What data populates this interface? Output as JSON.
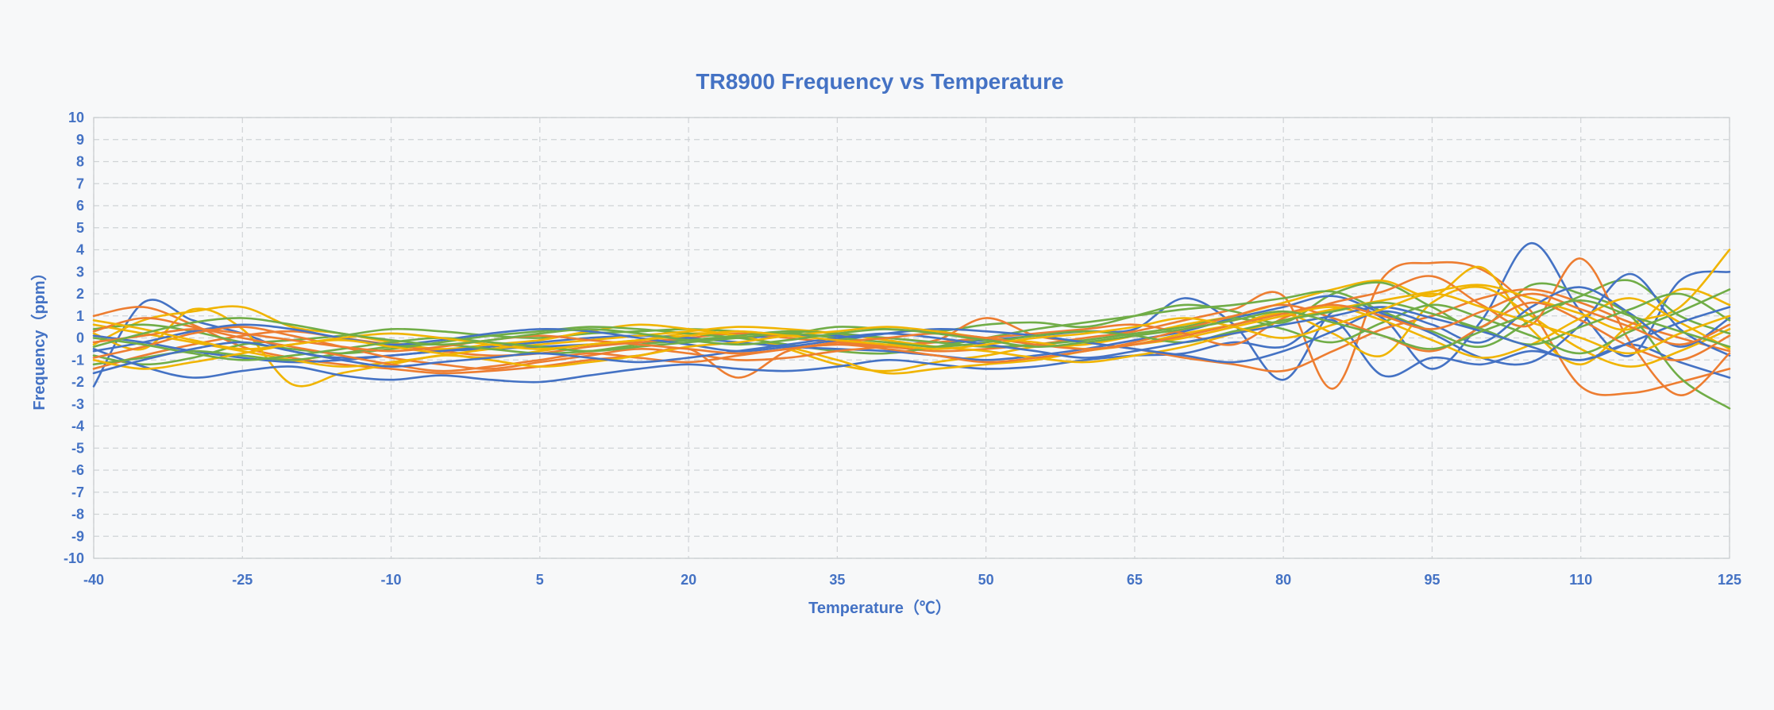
{
  "chart_data": {
    "type": "line",
    "title": "TR8900 Frequency vs Temperature",
    "xlabel": "Temperature（℃）",
    "ylabel": "Frequency（ppm）",
    "xlim": [
      -40,
      125
    ],
    "ylim": [
      -10,
      10
    ],
    "x_ticks": [
      -40,
      -25,
      -10,
      5,
      20,
      35,
      50,
      65,
      80,
      95,
      110,
      125
    ],
    "y_ticks": [
      10,
      9,
      8,
      7,
      6,
      5,
      4,
      3,
      2,
      1,
      0,
      -1,
      -2,
      -3,
      -4,
      -5,
      -6,
      -7,
      -8,
      -9,
      -10
    ],
    "grid": true,
    "legend": "none",
    "x": [
      -40,
      -35,
      -30,
      -25,
      -20,
      -15,
      -10,
      -5,
      0,
      5,
      10,
      15,
      20,
      25,
      30,
      35,
      40,
      45,
      50,
      55,
      60,
      65,
      70,
      75,
      80,
      85,
      90,
      95,
      100,
      105,
      110,
      115,
      120,
      125
    ],
    "series": [
      {
        "color": "#4472c4",
        "values": [
          -2.2,
          1.6,
          0.8,
          0.2,
          -0.6,
          -0.9,
          -0.8,
          -0.6,
          -0.5,
          -0.4,
          -0.3,
          -0.2,
          -0.1,
          0.0,
          0.1,
          0.1,
          0.0,
          -0.2,
          -0.1,
          0.1,
          0.3,
          0.4,
          1.8,
          0.6,
          -1.9,
          1.2,
          0.9,
          -1.4,
          0.8,
          4.3,
          1.2,
          -0.8,
          2.6,
          3.0
        ]
      },
      {
        "color": "#ed7d31",
        "values": [
          1.0,
          1.4,
          0.6,
          -0.4,
          -0.9,
          -1.2,
          -1.4,
          -1.6,
          -1.5,
          -1.3,
          -1.0,
          -0.8,
          -0.5,
          -1.8,
          -0.6,
          -0.3,
          -0.4,
          -0.6,
          -0.5,
          -0.3,
          0.0,
          0.3,
          0.8,
          1.3,
          1.9,
          -2.3,
          2.7,
          3.4,
          3.1,
          1.2,
          -2.2,
          -2.5,
          -2.0,
          -1.4
        ]
      },
      {
        "color": "#f0b400",
        "values": [
          0.2,
          -0.5,
          1.3,
          0.4,
          -2.1,
          -1.6,
          -1.2,
          -0.8,
          -0.9,
          -0.6,
          -0.3,
          -0.1,
          0.2,
          0.1,
          -0.5,
          -1.2,
          -1.5,
          -1.1,
          -0.8,
          -0.4,
          -0.3,
          0.1,
          0.6,
          1.0,
          1.6,
          2.2,
          2.6,
          1.9,
          3.2,
          0.4,
          -1.2,
          0.6,
          1.4,
          4.0
        ]
      },
      {
        "color": "#70ad47",
        "values": [
          -0.8,
          -1.2,
          -0.9,
          -0.3,
          -0.1,
          0.1,
          0.4,
          0.3,
          0.1,
          0.0,
          0.2,
          0.3,
          0.4,
          0.3,
          0.2,
          0.5,
          0.4,
          0.3,
          0.6,
          0.7,
          0.5,
          1.0,
          1.5,
          1.2,
          0.7,
          2.0,
          2.5,
          1.4,
          0.5,
          2.4,
          2.0,
          1.0,
          -1.8,
          -3.2
        ]
      },
      {
        "color": "#4472c4",
        "values": [
          -0.5,
          -1.3,
          -1.8,
          -1.5,
          -1.3,
          -1.7,
          -1.9,
          -1.7,
          -1.9,
          -2.0,
          -1.7,
          -1.4,
          -1.2,
          -1.4,
          -1.5,
          -1.3,
          -1.0,
          -1.2,
          -1.4,
          -1.3,
          -1.0,
          -0.8,
          -0.7,
          -0.2,
          -0.4,
          0.8,
          -1.7,
          -0.9,
          -1.2,
          -0.6,
          -1.0,
          -0.3,
          -1.1,
          -1.8
        ]
      },
      {
        "color": "#ed7d31",
        "values": [
          -1.4,
          -0.8,
          -0.3,
          0.1,
          0.3,
          0.0,
          -0.3,
          -0.6,
          -0.8,
          -0.7,
          -0.4,
          -0.2,
          0.0,
          0.2,
          0.0,
          -0.2,
          -0.3,
          -0.1,
          0.9,
          0.1,
          -0.2,
          -0.5,
          -0.9,
          -1.2,
          -1.5,
          -0.6,
          0.4,
          1.0,
          1.8,
          2.2,
          1.6,
          0.7,
          0.0,
          -0.6
        ]
      },
      {
        "color": "#f0b400",
        "values": [
          -0.3,
          0.8,
          1.2,
          1.4,
          0.5,
          0.2,
          -0.2,
          -0.5,
          -0.3,
          -0.1,
          0.3,
          0.6,
          0.4,
          0.1,
          -0.4,
          -1.0,
          -1.6,
          -1.4,
          -1.2,
          -1.0,
          -0.6,
          -0.3,
          0.2,
          0.6,
          1.1,
          0.2,
          -0.8,
          1.6,
          2.3,
          1.0,
          -0.5,
          -1.3,
          -0.6,
          0.4
        ]
      },
      {
        "color": "#70ad47",
        "values": [
          0.4,
          0.6,
          0.3,
          -0.2,
          -0.5,
          -0.7,
          -0.5,
          -0.2,
          0.1,
          0.3,
          0.5,
          0.4,
          0.2,
          0.0,
          -0.3,
          -0.6,
          -0.7,
          -0.4,
          0.0,
          0.4,
          0.7,
          1.0,
          1.3,
          1.5,
          1.8,
          2.1,
          1.2,
          0.3,
          -0.4,
          0.8,
          1.9,
          2.6,
          1.0,
          0.2
        ]
      },
      {
        "color": "#4472c4",
        "values": [
          0.1,
          -0.2,
          -0.6,
          -0.9,
          -1.1,
          -1.0,
          -0.8,
          -0.6,
          -0.4,
          -0.2,
          0.0,
          0.1,
          0.0,
          -0.2,
          -0.4,
          -0.5,
          -0.6,
          -0.8,
          -1.0,
          -0.8,
          -0.5,
          -0.1,
          0.3,
          0.9,
          1.4,
          1.9,
          1.1,
          0.2,
          -0.9,
          -1.1,
          0.6,
          2.9,
          0.4,
          -0.8
        ]
      },
      {
        "color": "#ed7d31",
        "values": [
          -0.9,
          -0.4,
          0.2,
          0.5,
          0.1,
          -0.4,
          -0.9,
          -1.2,
          -1.4,
          -1.1,
          -0.8,
          -0.5,
          -0.7,
          -1.0,
          -0.9,
          -0.6,
          -0.4,
          -0.2,
          0.0,
          0.2,
          0.4,
          0.6,
          0.2,
          -0.3,
          0.9,
          1.6,
          2.1,
          2.8,
          1.5,
          0.6,
          3.6,
          -0.2,
          -2.6,
          -0.7
        ]
      },
      {
        "color": "#f0b400",
        "values": [
          0.6,
          0.2,
          -0.2,
          -0.6,
          -1.0,
          -1.3,
          -1.1,
          -0.8,
          -0.5,
          -0.3,
          -0.1,
          0.1,
          0.3,
          0.5,
          0.4,
          0.2,
          -0.1,
          -0.4,
          -0.6,
          -0.9,
          -1.1,
          -0.8,
          -0.4,
          0.2,
          0.8,
          1.3,
          1.7,
          2.1,
          2.4,
          1.8,
          1.1,
          0.4,
          2.2,
          1.5
        ]
      },
      {
        "color": "#70ad47",
        "values": [
          -1.2,
          -0.9,
          -0.6,
          -0.8,
          -1.0,
          -0.7,
          -0.4,
          -0.3,
          -0.5,
          -0.7,
          -0.6,
          -0.3,
          -0.1,
          0.1,
          0.3,
          0.2,
          0.0,
          -0.2,
          -0.4,
          -0.3,
          -0.1,
          0.2,
          0.5,
          0.9,
          0.4,
          -0.2,
          0.7,
          1.5,
          0.9,
          0.1,
          -0.7,
          0.3,
          1.2,
          2.2
        ]
      },
      {
        "color": "#4472c4",
        "values": [
          -0.6,
          -0.2,
          0.3,
          0.6,
          0.4,
          0.0,
          -0.3,
          -0.1,
          0.2,
          0.4,
          0.3,
          0.0,
          -0.3,
          -0.6,
          -0.4,
          -0.1,
          0.2,
          0.4,
          0.3,
          0.1,
          -0.2,
          -0.5,
          -0.8,
          -1.1,
          -0.6,
          0.3,
          1.2,
          0.6,
          -0.2,
          1.4,
          2.3,
          1.1,
          -0.4,
          0.9
        ]
      },
      {
        "color": "#ed7d31",
        "values": [
          0.3,
          0.9,
          0.5,
          0.0,
          -0.4,
          -0.8,
          -1.2,
          -1.5,
          -1.3,
          -1.0,
          -0.7,
          -0.9,
          -1.1,
          -0.8,
          -0.5,
          -0.3,
          -0.5,
          -0.8,
          -1.1,
          -0.9,
          -0.6,
          -0.2,
          0.4,
          1.0,
          1.5,
          0.9,
          0.1,
          -0.6,
          0.5,
          1.6,
          0.8,
          -0.4,
          -1.0,
          0.1
        ]
      },
      {
        "color": "#f0b400",
        "values": [
          -1.0,
          -1.4,
          -1.1,
          -0.7,
          -0.3,
          -0.1,
          -0.4,
          -0.7,
          -1.0,
          -1.3,
          -1.1,
          -0.8,
          -0.4,
          -0.2,
          0.1,
          0.3,
          0.5,
          0.3,
          0.0,
          -0.2,
          -0.5,
          -0.3,
          0.0,
          0.5,
          1.0,
          1.4,
          0.8,
          -0.1,
          -0.9,
          -0.3,
          0.9,
          1.8,
          0.7,
          -0.5
        ]
      },
      {
        "color": "#70ad47",
        "values": [
          0.0,
          -0.3,
          -0.7,
          -1.0,
          -0.8,
          -0.5,
          -0.2,
          0.0,
          -0.2,
          -0.4,
          -0.6,
          -0.4,
          -0.2,
          0.0,
          0.2,
          0.0,
          -0.2,
          -0.4,
          -0.2,
          0.1,
          0.3,
          0.1,
          -0.2,
          0.3,
          0.8,
          1.2,
          1.6,
          1.1,
          0.4,
          -0.3,
          0.5,
          1.3,
          2.0,
          0.8
        ]
      },
      {
        "color": "#4472c4",
        "values": [
          -1.6,
          -1.0,
          -0.5,
          -0.2,
          -0.6,
          -1.0,
          -1.3,
          -1.1,
          -0.9,
          -0.7,
          -0.9,
          -1.1,
          -0.9,
          -0.6,
          -0.3,
          0.0,
          0.2,
          0.0,
          -0.3,
          -0.6,
          -0.9,
          -0.6,
          -0.2,
          0.2,
          0.6,
          1.0,
          1.4,
          0.9,
          0.3,
          -0.4,
          -1.0,
          -0.2,
          0.7,
          1.4
        ]
      },
      {
        "color": "#ed7d31",
        "values": [
          -0.2,
          0.1,
          0.4,
          0.2,
          -0.1,
          -0.4,
          -0.6,
          -0.4,
          -0.1,
          0.1,
          -0.1,
          -0.3,
          -0.5,
          -0.7,
          -0.5,
          -0.2,
          0.0,
          0.2,
          0.0,
          -0.3,
          -0.5,
          -0.3,
          0.1,
          0.6,
          1.1,
          1.5,
          1.0,
          0.4,
          1.2,
          2.0,
          1.3,
          0.5,
          -0.3,
          0.6
        ]
      },
      {
        "color": "#f0b400",
        "values": [
          0.8,
          0.4,
          -0.1,
          -0.5,
          -0.3,
          0.0,
          0.2,
          0.0,
          -0.3,
          -0.5,
          -0.3,
          -0.1,
          0.1,
          0.3,
          0.1,
          -0.1,
          -0.3,
          -0.5,
          -0.3,
          0.0,
          0.2,
          0.5,
          0.9,
          0.5,
          0.0,
          0.6,
          1.3,
          2.0,
          1.4,
          0.7,
          0.0,
          -0.7,
          0.2,
          1.0
        ]
      },
      {
        "color": "#70ad47",
        "values": [
          -0.4,
          0.2,
          0.7,
          0.9,
          0.6,
          0.2,
          -0.1,
          -0.3,
          -0.1,
          0.2,
          0.4,
          0.2,
          -0.1,
          -0.3,
          -0.1,
          0.2,
          0.4,
          0.2,
          -0.1,
          -0.4,
          -0.2,
          0.1,
          0.4,
          0.8,
          1.2,
          0.7,
          0.1,
          -0.5,
          0.3,
          1.1,
          1.7,
          1.0,
          0.3,
          -0.4
        ]
      }
    ]
  }
}
